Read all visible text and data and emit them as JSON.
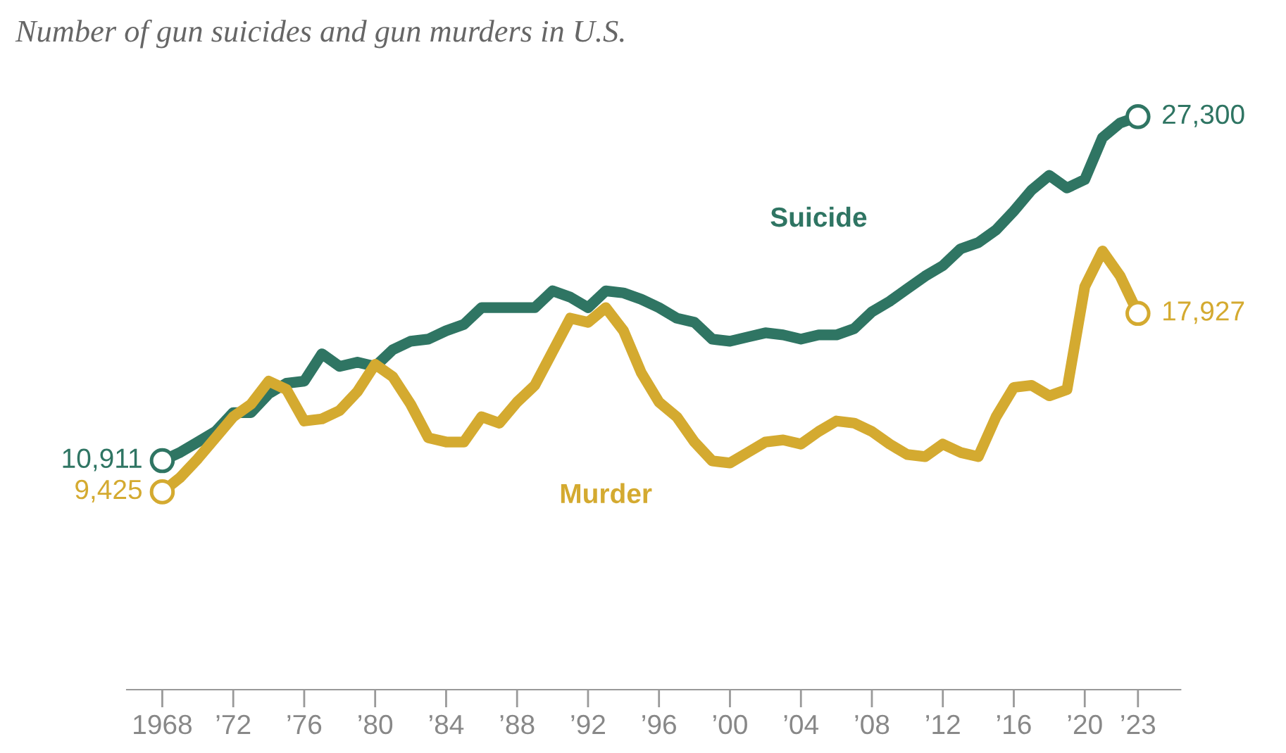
{
  "chart_data": {
    "type": "line",
    "title": "Number of gun suicides and gun murders in U.S.",
    "x": [
      1968,
      1969,
      1970,
      1971,
      1972,
      1973,
      1974,
      1975,
      1976,
      1977,
      1978,
      1979,
      1980,
      1981,
      1982,
      1983,
      1984,
      1985,
      1986,
      1987,
      1988,
      1989,
      1990,
      1991,
      1992,
      1993,
      1994,
      1995,
      1996,
      1997,
      1998,
      1999,
      2000,
      2001,
      2002,
      2003,
      2004,
      2005,
      2006,
      2007,
      2008,
      2009,
      2010,
      2011,
      2012,
      2013,
      2014,
      2015,
      2016,
      2017,
      2018,
      2019,
      2020,
      2021,
      2022,
      2023
    ],
    "series": [
      {
        "name": "Suicide",
        "color": "#2f7563",
        "values": [
          10911,
          11300,
          11800,
          12300,
          13200,
          13200,
          14100,
          14600,
          14700,
          16000,
          15400,
          15600,
          15400,
          16200,
          16600,
          16700,
          17100,
          17400,
          18200,
          18200,
          18200,
          18200,
          19000,
          18700,
          18200,
          19000,
          18900,
          18600,
          18200,
          17700,
          17500,
          16700,
          16600,
          16800,
          17000,
          16900,
          16700,
          16900,
          16900,
          17200,
          18000,
          18500,
          19100,
          19700,
          20200,
          21000,
          21300,
          21900,
          22800,
          23800,
          24500,
          23900,
          24300,
          26300,
          27000,
          27300
        ],
        "value_labels": [
          "10,911",
          null,
          null,
          null,
          null,
          null,
          null,
          null,
          null,
          null,
          null,
          null,
          null,
          null,
          null,
          null,
          null,
          null,
          null,
          null,
          null,
          null,
          null,
          null,
          null,
          null,
          null,
          null,
          null,
          null,
          null,
          null,
          null,
          null,
          null,
          null,
          null,
          null,
          null,
          null,
          null,
          null,
          null,
          null,
          null,
          null,
          null,
          null,
          null,
          null,
          null,
          null,
          null,
          null,
          null,
          "27,300"
        ]
      },
      {
        "name": "Murder",
        "color": "#d4aa30",
        "values": [
          9425,
          10100,
          11000,
          12000,
          13000,
          13600,
          14700,
          14300,
          12800,
          12900,
          13300,
          14200,
          15500,
          14900,
          13600,
          12000,
          11800,
          11800,
          13000,
          12700,
          13700,
          14500,
          16100,
          17700,
          17500,
          18200,
          17100,
          15100,
          13700,
          13000,
          11800,
          10900,
          10800,
          11300,
          11800,
          11900,
          11700,
          12300,
          12800,
          12700,
          12300,
          11700,
          11200,
          11100,
          11700,
          11300,
          11100,
          13000,
          14400,
          14500,
          14000,
          14300,
          19200,
          20900,
          19700,
          17927
        ],
        "value_labels": [
          "9,425",
          null,
          null,
          null,
          null,
          null,
          null,
          null,
          null,
          null,
          null,
          null,
          null,
          null,
          null,
          null,
          null,
          null,
          null,
          null,
          null,
          null,
          null,
          null,
          null,
          null,
          null,
          null,
          null,
          null,
          null,
          null,
          null,
          null,
          null,
          null,
          null,
          null,
          null,
          null,
          null,
          null,
          null,
          null,
          null,
          null,
          null,
          null,
          null,
          null,
          null,
          null,
          null,
          null,
          null,
          "17,927"
        ]
      }
    ],
    "xlim": [
      1966,
      2025.4
    ],
    "xticks": [
      {
        "value": 1968,
        "label": "1968"
      },
      {
        "value": 1972,
        "label": "’72"
      },
      {
        "value": 1976,
        "label": "’76"
      },
      {
        "value": 1980,
        "label": "’80"
      },
      {
        "value": 1984,
        "label": "’84"
      },
      {
        "value": 1988,
        "label": "’88"
      },
      {
        "value": 1992,
        "label": "’92"
      },
      {
        "value": 1996,
        "label": "’96"
      },
      {
        "value": 2000,
        "label": "’00"
      },
      {
        "value": 2004,
        "label": "’04"
      },
      {
        "value": 2008,
        "label": "’08"
      },
      {
        "value": 2012,
        "label": "’12"
      },
      {
        "value": 2016,
        "label": "’16"
      },
      {
        "value": 2020,
        "label": "’20"
      },
      {
        "value": 2023,
        "label": "’23"
      }
    ],
    "tick_labels": "x",
    "grid": false,
    "legend": false,
    "line_style": "solid"
  }
}
